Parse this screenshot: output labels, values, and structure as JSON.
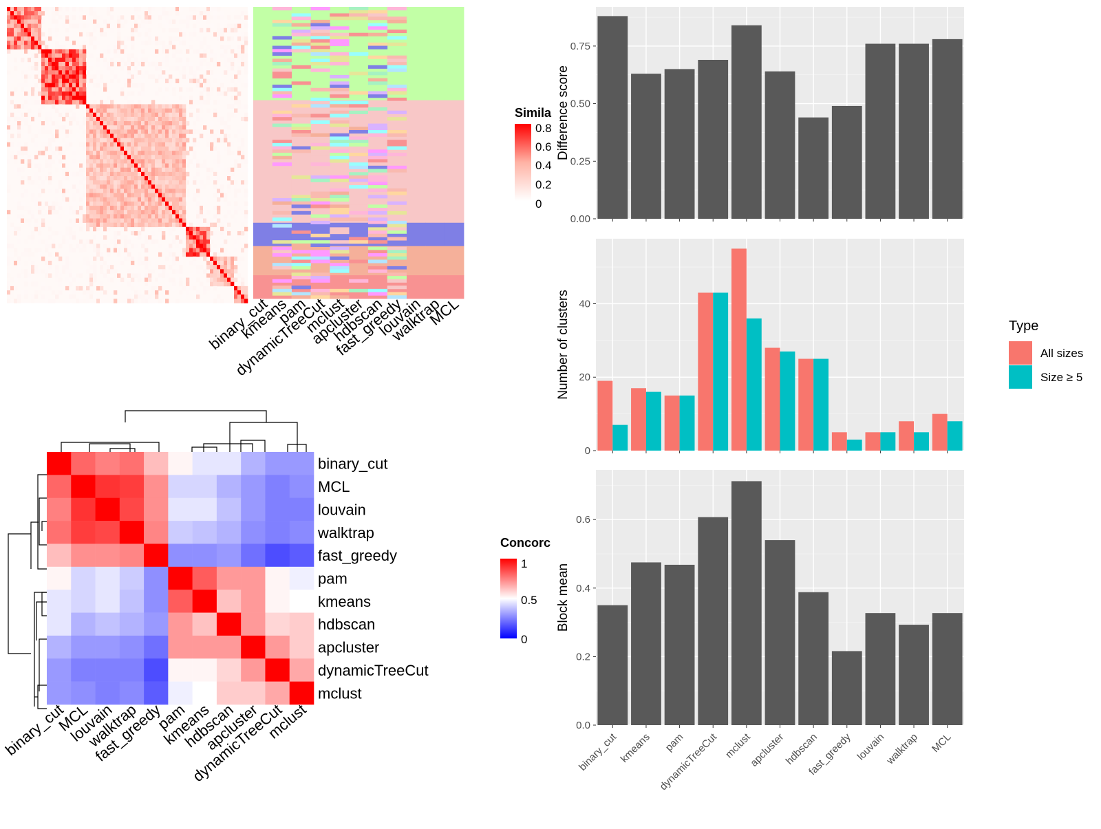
{
  "colors": {
    "panel_bg": "#EBEBEB",
    "grid": "#FFFFFF",
    "bar_dark": "#595959",
    "all_sizes": "#F8766D",
    "size_ge_5": "#00BFC4",
    "similarity_high": "#FF0000",
    "concordance_low": "#0000FF"
  },
  "similarity_legend": {
    "title": "Simila",
    "ticks": [
      "0.8",
      "0.6",
      "0.4",
      "0.2",
      "0"
    ]
  },
  "concordance_legend": {
    "title": "Concorc",
    "ticks": [
      "1",
      "0.5",
      "0"
    ]
  },
  "cluster_membership": {
    "columns": [
      "binary_cut",
      "kmeans",
      "pam",
      "dynamicTreeCut",
      "mclust",
      "apcluster",
      "hdbscan",
      "fast_greedy",
      "louvain",
      "walktrap",
      "MCL"
    ]
  },
  "chart_data": [
    {
      "type": "heatmap",
      "name": "Similarity matrix heatmap",
      "legend_title": "Simila",
      "value_range": [
        0,
        0.8
      ],
      "blocks": [
        {
          "start": 0.0,
          "end": 0.13,
          "value": 0.55
        },
        {
          "start": 0.13,
          "end": 0.32,
          "value": 0.65
        },
        {
          "start": 0.32,
          "end": 0.73,
          "value": 0.35
        },
        {
          "start": 0.73,
          "end": 0.84,
          "value": 0.6
        },
        {
          "start": 0.84,
          "end": 0.93,
          "value": 0.35
        },
        {
          "start": 0.93,
          "end": 1.0,
          "value": 0.45
        }
      ]
    },
    {
      "type": "heatmap",
      "name": "Concordance heatmap",
      "legend_title": "Concorc",
      "value_range": [
        0,
        1
      ],
      "rows": [
        "binary_cut",
        "MCL",
        "louvain",
        "walktrap",
        "fast_greedy",
        "pam",
        "kmeans",
        "hdbscan",
        "apcluster",
        "dynamicTreeCut",
        "mclust"
      ],
      "columns": [
        "binary_cut",
        "MCL",
        "louvain",
        "walktrap",
        "fast_greedy",
        "pam",
        "kmeans",
        "hdbscan",
        "apcluster",
        "dynamicTreeCut",
        "mclust"
      ],
      "values": [
        [
          1.0,
          0.8,
          0.75,
          0.78,
          0.63,
          0.52,
          0.45,
          0.45,
          0.35,
          0.3,
          0.3
        ],
        [
          0.8,
          1.0,
          0.9,
          0.88,
          0.72,
          0.42,
          0.42,
          0.35,
          0.3,
          0.25,
          0.28
        ],
        [
          0.75,
          0.9,
          1.0,
          0.86,
          0.72,
          0.45,
          0.45,
          0.38,
          0.3,
          0.25,
          0.25
        ],
        [
          0.78,
          0.88,
          0.86,
          1.0,
          0.74,
          0.4,
          0.38,
          0.35,
          0.28,
          0.25,
          0.27
        ],
        [
          0.63,
          0.72,
          0.72,
          0.74,
          1.0,
          0.28,
          0.28,
          0.3,
          0.22,
          0.15,
          0.18
        ],
        [
          0.52,
          0.42,
          0.45,
          0.4,
          0.28,
          1.0,
          0.82,
          0.7,
          0.7,
          0.52,
          0.47
        ],
        [
          0.45,
          0.42,
          0.45,
          0.38,
          0.28,
          0.82,
          1.0,
          0.62,
          0.7,
          0.52,
          0.5
        ],
        [
          0.45,
          0.35,
          0.38,
          0.35,
          0.3,
          0.7,
          0.62,
          1.0,
          0.7,
          0.58,
          0.6
        ],
        [
          0.35,
          0.3,
          0.3,
          0.28,
          0.22,
          0.7,
          0.7,
          0.7,
          1.0,
          0.7,
          0.6
        ],
        [
          0.3,
          0.25,
          0.25,
          0.25,
          0.15,
          0.52,
          0.52,
          0.58,
          0.7,
          1.0,
          0.67
        ],
        [
          0.3,
          0.28,
          0.25,
          0.27,
          0.18,
          0.47,
          0.5,
          0.6,
          0.6,
          0.67,
          1.0
        ]
      ]
    },
    {
      "type": "bar",
      "categories": [
        "binary_cut",
        "kmeans",
        "pam",
        "dynamicTreeCut",
        "mclust",
        "apcluster",
        "hdbscan",
        "fast_greedy",
        "louvain",
        "walktrap",
        "MCL"
      ],
      "values": [
        0.88,
        0.63,
        0.65,
        0.69,
        0.84,
        0.64,
        0.44,
        0.49,
        0.76,
        0.76,
        0.78
      ],
      "ylabel": "Difference score",
      "ylim": [
        0,
        0.92
      ],
      "yticks": [
        0.0,
        0.25,
        0.5,
        0.75
      ],
      "ytick_labels": [
        "0.00",
        "0.25",
        "0.50",
        "0.75"
      ],
      "grid": true
    },
    {
      "type": "bar",
      "categories": [
        "binary_cut",
        "kmeans",
        "pam",
        "dynamicTreeCut",
        "mclust",
        "apcluster",
        "hdbscan",
        "fast_greedy",
        "louvain",
        "walktrap",
        "MCL"
      ],
      "series": [
        {
          "name": "All sizes",
          "values": [
            19,
            17,
            15,
            43,
            55,
            28,
            25,
            5,
            5,
            8,
            10
          ]
        },
        {
          "name": "Size ≥ 5",
          "values": [
            7,
            16,
            15,
            43,
            36,
            27,
            25,
            3,
            5,
            5,
            8
          ]
        }
      ],
      "ylabel": "Number of clusters",
      "ylim": [
        0,
        57.7
      ],
      "yticks": [
        0,
        20,
        40
      ],
      "ytick_labels": [
        "0",
        "20",
        "40"
      ],
      "legend_title": "Type",
      "legend": "right",
      "grid": true
    },
    {
      "type": "bar",
      "categories": [
        "binary_cut",
        "kmeans",
        "pam",
        "dynamicTreeCut",
        "mclust",
        "apcluster",
        "hdbscan",
        "fast_greedy",
        "louvain",
        "walktrap",
        "MCL"
      ],
      "values": [
        0.35,
        0.475,
        0.468,
        0.607,
        0.712,
        0.54,
        0.388,
        0.216,
        0.327,
        0.293,
        0.327
      ],
      "ylabel": "Block mean",
      "ylim": [
        0,
        0.745
      ],
      "yticks": [
        0.0,
        0.2,
        0.4,
        0.6
      ],
      "ytick_labels": [
        "0.0",
        "0.2",
        "0.4",
        "0.6"
      ],
      "grid": true
    }
  ]
}
